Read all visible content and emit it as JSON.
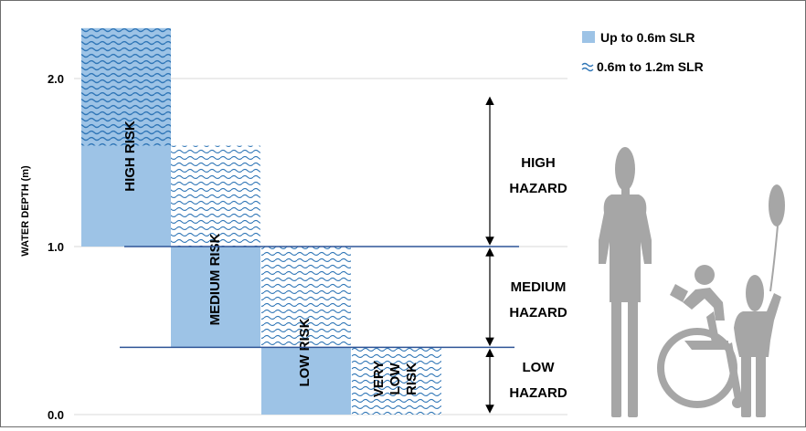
{
  "chart_data": {
    "type": "bar",
    "title": "",
    "ylabel": "WATER DEPTH (m)",
    "xlabel": "",
    "ylim": [
      0,
      2.3
    ],
    "yticks": [
      "0.0",
      "1.0",
      "2.0"
    ],
    "ytick_values": [
      0,
      1,
      2
    ],
    "legend_position": "top-right",
    "series": [
      {
        "name": "Up to 0.6m SLR",
        "pattern": "solid",
        "color": "#9dc3e6"
      },
      {
        "name": "0.6m to 1.2m SLR",
        "pattern": "wave",
        "color": "#2e75b6"
      }
    ],
    "categories": [
      "HIGH RISK",
      "MEDIUM RISK",
      "LOW RISK",
      "VERY LOW RISK"
    ],
    "category_label_lines": [
      [
        "HIGH RISK"
      ],
      [
        "MEDIUM RISK"
      ],
      [
        "LOW RISK"
      ],
      [
        "VERY",
        "LOW",
        "RISK"
      ]
    ],
    "bars": [
      {
        "category": "HIGH RISK",
        "solid": [
          1.0,
          1.6
        ],
        "wave": [
          1.6,
          2.3
        ]
      },
      {
        "category": "MEDIUM RISK",
        "solid": [
          0.4,
          1.0
        ],
        "wave": [
          1.0,
          1.6
        ]
      },
      {
        "category": "LOW RISK",
        "solid": [
          0.0,
          0.4
        ],
        "wave": [
          0.4,
          1.0
        ]
      },
      {
        "category": "VERY LOW RISK",
        "solid": null,
        "wave": [
          0.0,
          0.4
        ]
      }
    ],
    "threshold_lines": [
      1.0,
      0.4
    ],
    "hazard_zones": [
      {
        "label_lines": [
          "HIGH",
          "HAZARD"
        ],
        "from": 1.0,
        "to": 1.9
      },
      {
        "label_lines": [
          "MEDIUM",
          "HAZARD"
        ],
        "from": 0.4,
        "to": 1.0
      },
      {
        "label_lines": [
          "LOW",
          "HAZARD"
        ],
        "from": 0.0,
        "to": 0.4
      }
    ],
    "figures": [
      "woman-figure",
      "wheelchair-user-figure",
      "child-with-balloon-figure"
    ],
    "colors": {
      "solid_fill": "#9dc3e6",
      "wave_stroke": "#2e75b6",
      "threshold_line": "#2f5597",
      "axis_text": "#000000",
      "figure_gray": "#a6a6a6",
      "gridline": "#d9d9d9"
    }
  }
}
